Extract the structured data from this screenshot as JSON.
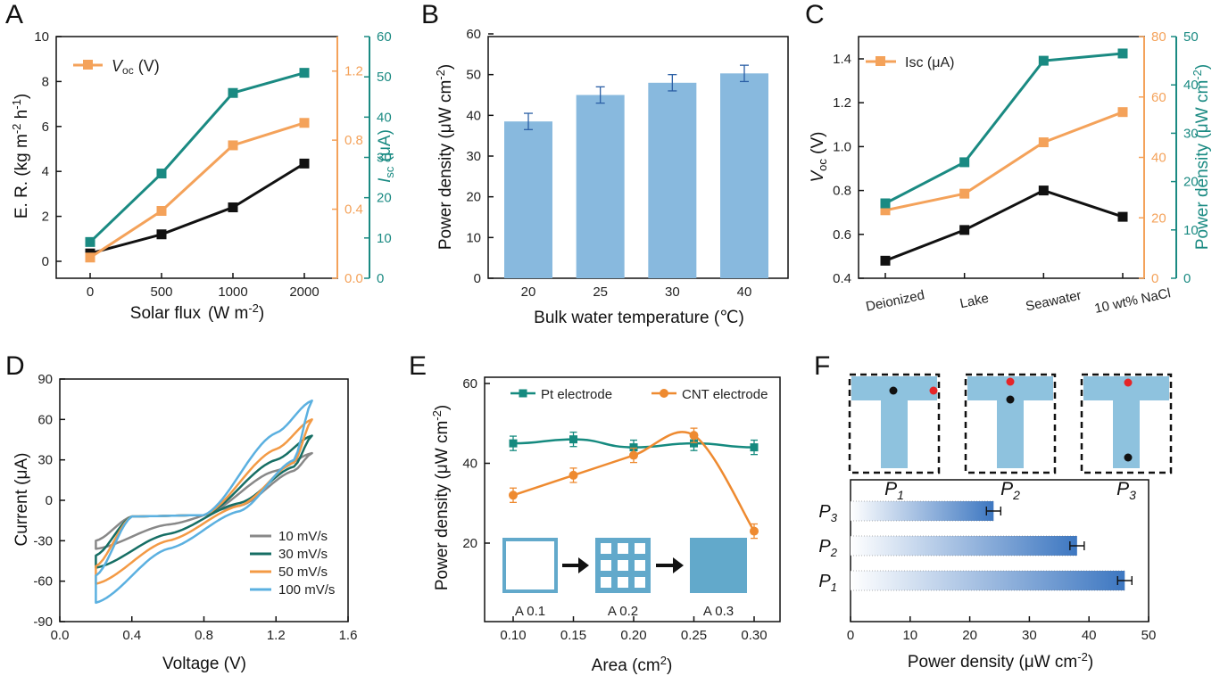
{
  "colors": {
    "black": "#111111",
    "orange": "#F4A25A",
    "teal": "#1A8A82",
    "blue_bar": "#88B9DE",
    "gray": "#888888",
    "dteal": "#166E64",
    "lorange": "#F39A45",
    "lblue": "#5BB0E0",
    "pt": "#158A7F",
    "cnt": "#EE8A30",
    "pore": "#62A9CB",
    "red": "#E52528"
  },
  "panels": {
    "A": {
      "letter": "A",
      "xlabel_main": "Solar flux",
      "xlabel_unit": "(W m",
      "xlabel_exp": "-2",
      "xlabel_close": ")",
      "ylabel_left_main": "E. R. (kg m",
      "ylabel_left_exp1": "-2",
      "ylabel_left_mid": " h",
      "ylabel_left_exp2": "-1",
      "ylabel_left_close": ")",
      "ylabel_right_main": "I",
      "ylabel_right_sub": "sc",
      "ylabel_right_unit": " (μA)",
      "legend_label_main": "V",
      "legend_label_sub": "oc",
      "legend_label_unit": " (V)",
      "xticks": [
        "0",
        "500",
        "1000",
        "2000"
      ],
      "yticks_left": [
        "0",
        "2",
        "4",
        "6",
        "8",
        "10"
      ],
      "yticks_orange": [
        "0.0",
        "0.4",
        "0.8",
        "1.2"
      ],
      "yticks_teal": [
        "0",
        "10",
        "20",
        "30",
        "40",
        "50",
        "60"
      ]
    },
    "B": {
      "letter": "B",
      "xlabel": "Bulk water temperature (℃)",
      "ylabel_main": "Power density (μW cm",
      "ylabel_exp": "-2",
      "ylabel_close": ")",
      "xticks": [
        "20",
        "25",
        "30",
        "40"
      ],
      "yticks": [
        "0",
        "10",
        "20",
        "30",
        "40",
        "50",
        "60"
      ]
    },
    "C": {
      "letter": "C",
      "xticks": [
        "Deionized",
        "Lake",
        "Seawater",
        "10 wt% NaCl"
      ],
      "ylabel_left_main": "V",
      "ylabel_left_sub": "oc",
      "ylabel_left_unit": " (V)",
      "ylabel_right_main": "Power density (μW cm",
      "ylabel_right_exp": "-2",
      "ylabel_right_close": ")",
      "legend_label": "Isc (μA)",
      "yticks_left": [
        "0.4",
        "0.6",
        "0.8",
        "1.0",
        "1.2",
        "1.4"
      ],
      "yticks_orange": [
        "0",
        "20",
        "40",
        "60",
        "80"
      ],
      "yticks_teal": [
        "0",
        "10",
        "20",
        "30",
        "40",
        "50"
      ]
    },
    "D": {
      "letter": "D",
      "xlabel": "Voltage (V)",
      "ylabel": "Current (μA)",
      "xticks": [
        "0.0",
        "0.4",
        "0.8",
        "1.2",
        "1.6"
      ],
      "yticks": [
        "-90",
        "-60",
        "-30",
        "0",
        "30",
        "60",
        "90"
      ],
      "legend": [
        "10 mV/s",
        "30 mV/s",
        "50 mV/s",
        "100 mV/s"
      ]
    },
    "E": {
      "letter": "E",
      "xlabel_main": "Area (cm",
      "xlabel_exp": "2",
      "xlabel_close": ")",
      "ylabel_main": "Power density (μW cm",
      "ylabel_exp": "-2",
      "ylabel_close": ")",
      "xticks": [
        "0.10",
        "0.15",
        "0.20",
        "0.25",
        "0.30"
      ],
      "yticks": [
        "20",
        "40",
        "60"
      ],
      "legend": [
        "Pt electrode",
        "CNT electrode"
      ],
      "inset_labels": [
        "A 0.1",
        "A 0.2",
        "A 0.3"
      ]
    },
    "F": {
      "letter": "F",
      "xlabel_main": "Power density (μW cm",
      "xlabel_exp": "-2",
      "xlabel_close": ")",
      "xticks": [
        "0",
        "10",
        "20",
        "30",
        "40",
        "50"
      ],
      "positions": [
        {
          "main": "P",
          "sub": "1"
        },
        {
          "main": "P",
          "sub": "2"
        },
        {
          "main": "P",
          "sub": "3"
        }
      ],
      "bar_labels": [
        {
          "main": "P",
          "sub": "3"
        },
        {
          "main": "P",
          "sub": "2"
        },
        {
          "main": "P",
          "sub": "1"
        }
      ]
    }
  },
  "chart_data": [
    {
      "panel": "A",
      "type": "line",
      "x": [
        0,
        500,
        1000,
        2000
      ],
      "xlabel": "Solar flux (W m-2)",
      "series": [
        {
          "name": "E. R. (kg m-2 h-1)",
          "axis": "left",
          "color": "#111111",
          "values": [
            0.35,
            1.2,
            2.4,
            4.35
          ]
        },
        {
          "name": "Voc (V)",
          "axis": "right_orange",
          "color": "#F4A25A",
          "values": [
            0.12,
            0.39,
            0.77,
            0.9
          ]
        },
        {
          "name": "Isc (μA)",
          "axis": "right_teal",
          "color": "#1A8A82",
          "values": [
            9,
            26,
            46,
            51
          ]
        }
      ],
      "ylim_left": [
        -0.5,
        10
      ],
      "ylim_orange": [
        0,
        1.4
      ],
      "ylim_teal": [
        0,
        60
      ]
    },
    {
      "panel": "B",
      "type": "bar",
      "categories": [
        "20",
        "25",
        "30",
        "40"
      ],
      "values": [
        38.5,
        45,
        48,
        50.3
      ],
      "errors": [
        2.0,
        2.0,
        2.0,
        2.0
      ],
      "xlabel": "Bulk water temperature (℃)",
      "ylabel": "Power density (μW cm-2)",
      "ylim": [
        0,
        60
      ]
    },
    {
      "panel": "C",
      "type": "line",
      "categories": [
        "Deionized",
        "Lake",
        "Seawater",
        "10 wt% NaCl"
      ],
      "series": [
        {
          "name": "Voc (V)",
          "axis": "left",
          "color": "#111111",
          "values": [
            0.48,
            0.62,
            0.8,
            0.68
          ]
        },
        {
          "name": "Isc (μA)",
          "axis": "right_orange",
          "color": "#F4A25A",
          "values": [
            22.5,
            28,
            45,
            55
          ]
        },
        {
          "name": "Power density (μW cm-2)",
          "axis": "right_teal",
          "color": "#1A8A82",
          "values": [
            15.5,
            24,
            45,
            46.5
          ]
        }
      ],
      "ylim_left": [
        0.4,
        1.5
      ],
      "ylim_orange": [
        0,
        80
      ],
      "ylim_teal": [
        0,
        50
      ]
    },
    {
      "panel": "D",
      "type": "line",
      "xlabel": "Voltage (V)",
      "ylabel": "Current (μA)",
      "xlim": [
        0.0,
        1.6
      ],
      "ylim": [
        -90,
        90
      ],
      "x_range": [
        0.2,
        1.4
      ],
      "series": [
        {
          "name": "10 mV/s",
          "color": "#888888",
          "i_min": -36,
          "i_max": 35,
          "upper_knots": [
            [
              0.2,
              -30
            ],
            [
              0.4,
              -12
            ],
            [
              0.8,
              -11
            ],
            [
              1.2,
              22
            ],
            [
              1.4,
              35
            ]
          ],
          "lower_knots": [
            [
              0.2,
              -36
            ],
            [
              0.6,
              -18
            ],
            [
              1.0,
              -4
            ],
            [
              1.3,
              22
            ],
            [
              1.4,
              35
            ]
          ]
        },
        {
          "name": "30 mV/s",
          "color": "#166E64",
          "i_min": -50,
          "i_max": 48,
          "upper_knots": [
            [
              0.2,
              -41
            ],
            [
              0.4,
              -12
            ],
            [
              0.8,
              -11
            ],
            [
              1.2,
              30
            ],
            [
              1.4,
              48
            ]
          ],
          "lower_knots": [
            [
              0.2,
              -50
            ],
            [
              0.6,
              -25
            ],
            [
              1.0,
              -2
            ],
            [
              1.3,
              25
            ],
            [
              1.4,
              48
            ]
          ]
        },
        {
          "name": "50 mV/s",
          "color": "#F39A45",
          "i_min": -62,
          "i_max": 60,
          "upper_knots": [
            [
              0.2,
              -49
            ],
            [
              0.4,
              -12
            ],
            [
              0.8,
              -11
            ],
            [
              1.2,
              38
            ],
            [
              1.4,
              60
            ]
          ],
          "lower_knots": [
            [
              0.2,
              -62
            ],
            [
              0.6,
              -30
            ],
            [
              1.0,
              -4
            ],
            [
              1.3,
              28
            ],
            [
              1.4,
              60
            ]
          ]
        },
        {
          "name": "100 mV/s",
          "color": "#5BB0E0",
          "i_min": -76,
          "i_max": 74,
          "upper_knots": [
            [
              0.2,
              -56
            ],
            [
              0.4,
              -12
            ],
            [
              0.8,
              -11
            ],
            [
              1.2,
              50
            ],
            [
              1.4,
              74
            ]
          ],
          "lower_knots": [
            [
              0.2,
              -76
            ],
            [
              0.6,
              -36
            ],
            [
              1.0,
              -8
            ],
            [
              1.3,
              30
            ],
            [
              1.4,
              74
            ]
          ]
        }
      ]
    },
    {
      "panel": "E",
      "type": "line",
      "x": [
        0.1,
        0.15,
        0.2,
        0.25,
        0.3
      ],
      "xlabel": "Area (cm2)",
      "ylabel": "Power density (μW cm-2)",
      "xlim": [
        0.075,
        0.315
      ],
      "ylim": [
        8,
        62
      ],
      "series": [
        {
          "name": "Pt electrode",
          "color": "#158A7F",
          "values": [
            45,
            46,
            44,
            45,
            44
          ],
          "errors": [
            1.8,
            1.8,
            1.8,
            1.8,
            1.8
          ]
        },
        {
          "name": "CNT electrode",
          "color": "#EE8A30",
          "values": [
            32,
            37,
            42,
            47,
            23
          ],
          "errors": [
            1.8,
            1.8,
            1.8,
            1.8,
            1.8
          ]
        }
      ]
    },
    {
      "panel": "F",
      "type": "bar",
      "orientation": "horizontal",
      "categories": [
        "P3",
        "P2",
        "P1"
      ],
      "values": [
        24,
        38,
        46
      ],
      "errors": [
        1.2,
        1.2,
        1.2
      ],
      "xlabel": "Power density (μW cm-2)",
      "xlim": [
        0,
        50
      ]
    }
  ]
}
